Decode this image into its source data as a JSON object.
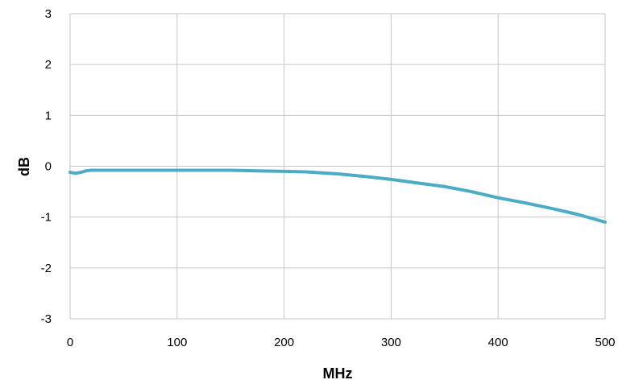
{
  "chart_data": {
    "type": "line",
    "title": "",
    "xlabel": "MHz",
    "ylabel": "dB",
    "xlim": [
      0,
      500
    ],
    "ylim": [
      -3,
      3
    ],
    "xticks": [
      "0",
      "100",
      "200",
      "300",
      "400",
      "500"
    ],
    "yticks": [
      "3",
      "2",
      "1",
      "0",
      "-1",
      "-2",
      "-3"
    ],
    "grid": true,
    "legend": "none",
    "series": [
      {
        "color": "#4BACC6",
        "x": [
          0,
          5,
          10,
          15,
          20,
          50,
          100,
          150,
          170,
          200,
          220,
          250,
          275,
          300,
          325,
          350,
          375,
          400,
          425,
          450,
          475,
          500
        ],
        "y": [
          -0.12,
          -0.14,
          -0.12,
          -0.09,
          -0.08,
          -0.08,
          -0.08,
          -0.08,
          -0.09,
          -0.1,
          -0.11,
          -0.15,
          -0.2,
          -0.26,
          -0.33,
          -0.4,
          -0.5,
          -0.62,
          -0.72,
          -0.83,
          -0.95,
          -1.1
        ]
      }
    ]
  },
  "colors": {
    "grid": "#C6C6C6",
    "series": "#4BACC6"
  }
}
